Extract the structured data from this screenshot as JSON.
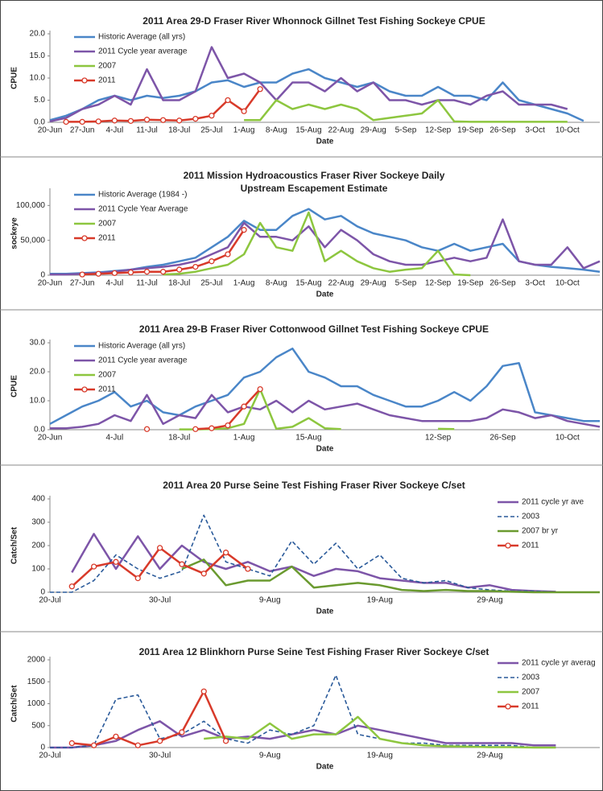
{
  "chart_data": [
    {
      "type": "line",
      "title": "2011 Area 29-D  Fraser River Whonnock Gillnet Test Fishing Sockeye CPUE",
      "xlabel": "Date",
      "ylabel": "CPUE",
      "legend": "upper left",
      "categories": [
        "20-Jun",
        null,
        "27-Jun",
        null,
        "4-Jul",
        null,
        "11-Jul",
        null,
        "18-Jul",
        null,
        "25-Jul",
        null,
        "1-Aug",
        null,
        "8-Aug",
        null,
        "15-Aug",
        null,
        "22-Aug",
        null,
        "29-Aug",
        null,
        "5-Sep",
        null,
        "12-Sep",
        null,
        "19-Sep",
        null,
        "26-Sep",
        null,
        "3-Oct",
        null,
        "10-Oct",
        null,
        null
      ],
      "ylim": [
        0,
        20
      ],
      "yticks": [
        {
          "value": 0,
          "label": "0.0"
        },
        {
          "value": 5,
          "label": "5.0"
        },
        {
          "value": 10,
          "label": "10.0"
        },
        {
          "value": 15,
          "label": "15.0"
        },
        {
          "value": 20,
          "label": "20.0"
        }
      ],
      "series": [
        {
          "name": "Historic Average (all yrs)",
          "color": "#4a86c8",
          "values": [
            0.5,
            1.5,
            3,
            5,
            6,
            5,
            6,
            5.5,
            6,
            7,
            9,
            9.5,
            8,
            9,
            9,
            11,
            12,
            10,
            9,
            8,
            9,
            7,
            6,
            6,
            8,
            6,
            6,
            5,
            9,
            5,
            4,
            3,
            2,
            0.3,
            null
          ]
        },
        {
          "name": "2011 Cycle year average",
          "color": "#7d55a8",
          "values": [
            0.2,
            1,
            3,
            4,
            6,
            4,
            12,
            5,
            5,
            7,
            17,
            10,
            11,
            9,
            5,
            9,
            9,
            7,
            10,
            7,
            9,
            5,
            5,
            4,
            5,
            5,
            4,
            6,
            7,
            4,
            4,
            4,
            3,
            null,
            null
          ]
        },
        {
          "name": "2007",
          "color": "#8dc63f",
          "values": [
            null,
            null,
            null,
            null,
            null,
            null,
            null,
            null,
            null,
            null,
            null,
            null,
            0.5,
            0.5,
            5,
            3,
            4,
            3,
            4,
            3,
            0.5,
            1,
            1.5,
            2,
            5,
            0.2,
            0.1,
            0.1,
            0.1,
            0.1,
            0.1,
            0.1,
            0.1,
            null,
            null
          ]
        },
        {
          "name": "2011",
          "color": "#d83a2a",
          "markers": true,
          "values": [
            null,
            0.1,
            0.1,
            0.2,
            0.4,
            0.3,
            0.6,
            0.5,
            0.4,
            0.8,
            1.5,
            5,
            2.5,
            7.5,
            null,
            null,
            null,
            null,
            null,
            null,
            null,
            null,
            null,
            null,
            null,
            null,
            null,
            null,
            null,
            null,
            null,
            null,
            null,
            null,
            null
          ]
        }
      ]
    },
    {
      "type": "line",
      "title": [
        "2011 Mission Hydroacoustics Fraser River Sockeye Daily",
        "Upstream Escapement Estimate"
      ],
      "xlabel": "Date",
      "ylabel": "sockeye",
      "legend": "upper left",
      "categories": [
        "20-Jun",
        null,
        "27-Jun",
        null,
        "4-Jul",
        null,
        "11-Jul",
        null,
        "18-Jul",
        null,
        "25-Jul",
        null,
        "1-Aug",
        null,
        "8-Aug",
        null,
        "15-Aug",
        null,
        "22-Aug",
        null,
        "29-Aug",
        null,
        "5-Sep",
        null,
        "12-Sep",
        null,
        "19-Sep",
        null,
        "26-Sep",
        null,
        "3-Oct",
        null,
        "10-Oct",
        null,
        null
      ],
      "ylim": [
        0,
        120000
      ],
      "yticks": [
        0,
        {
          "value": 50000,
          "label": "50,000"
        },
        {
          "value": 100000,
          "label": "100,000"
        }
      ],
      "series": [
        {
          "name": "Historic Average (1984 -)",
          "color": "#4a86c8",
          "values": [
            2000,
            2000,
            3000,
            4000,
            6000,
            8000,
            12000,
            15000,
            20000,
            25000,
            40000,
            55000,
            78000,
            65000,
            65000,
            85000,
            95000,
            80000,
            85000,
            70000,
            60000,
            55000,
            50000,
            40000,
            35000,
            45000,
            35000,
            40000,
            45000,
            20000,
            15000,
            12000,
            10000,
            8000,
            5000
          ]
        },
        {
          "name": "2011 Cycle Year Average",
          "color": "#7d55a8",
          "values": [
            1000,
            1000,
            2000,
            3000,
            5000,
            8000,
            10000,
            12000,
            15000,
            20000,
            30000,
            40000,
            75000,
            55000,
            55000,
            50000,
            70000,
            40000,
            65000,
            50000,
            30000,
            20000,
            15000,
            15000,
            20000,
            25000,
            20000,
            25000,
            80000,
            20000,
            15000,
            15000,
            40000,
            10000,
            20000
          ]
        },
        {
          "name": "2007",
          "color": "#8dc63f",
          "values": [
            null,
            null,
            null,
            null,
            null,
            null,
            null,
            1000,
            2000,
            5000,
            10000,
            15000,
            30000,
            75000,
            40000,
            35000,
            90000,
            20000,
            35000,
            20000,
            10000,
            5000,
            8000,
            10000,
            35000,
            1000,
            0,
            null,
            null,
            null,
            null,
            null,
            null,
            null,
            null
          ]
        },
        {
          "name": "2011",
          "color": "#d83a2a",
          "markers": true,
          "values": [
            null,
            null,
            1000,
            2000,
            3000,
            4000,
            5000,
            5000,
            8000,
            12000,
            20000,
            30000,
            65000,
            null,
            null,
            null,
            null,
            null,
            null,
            null,
            null,
            null,
            null,
            null,
            null,
            null,
            null,
            null,
            null,
            null,
            null,
            null,
            null,
            null,
            null
          ]
        }
      ]
    },
    {
      "type": "line",
      "title": "2011 Area 29-B  Fraser River Cottonwood Gillnet Test Fishing Sockeye CPUE",
      "xlabel": "Date",
      "ylabel": "CPUE",
      "legend": "upper left",
      "categories": [
        "20-Jun",
        null,
        null,
        null,
        "4-Jul",
        null,
        null,
        null,
        "18-Jul",
        null,
        null,
        null,
        "1-Aug",
        null,
        null,
        null,
        "15-Aug",
        null,
        null,
        null,
        null,
        null,
        null,
        null,
        "12-Sep",
        null,
        null,
        null,
        "26-Sep",
        null,
        null,
        null,
        "10-Oct",
        null,
        null
      ],
      "ylim": [
        0,
        30
      ],
      "yticks": [
        {
          "value": 0,
          "label": "0.0"
        },
        {
          "value": 10,
          "label": "10.0"
        },
        {
          "value": 20,
          "label": "20.0"
        },
        {
          "value": 30,
          "label": "30.0"
        }
      ],
      "series": [
        {
          "name": "Historic Average (all yrs)",
          "color": "#4a86c8",
          "values": [
            2,
            5,
            8,
            10,
            13,
            8,
            10,
            6,
            5,
            8,
            10,
            12,
            18,
            20,
            25,
            28,
            20,
            18,
            15,
            15,
            12,
            10,
            8,
            8,
            10,
            13,
            10,
            15,
            22,
            23,
            6,
            5,
            4,
            3,
            3
          ]
        },
        {
          "name": "2011 Cycle year average",
          "color": "#7d55a8",
          "values": [
            0.5,
            0.5,
            1,
            2,
            5,
            3,
            12,
            2,
            5,
            4,
            12,
            6,
            8,
            7,
            10,
            6,
            10,
            7,
            8,
            9,
            7,
            5,
            4,
            3,
            3,
            3,
            3,
            4,
            7,
            6,
            4,
            5,
            3,
            2,
            1
          ]
        },
        {
          "name": "2007",
          "color": "#8dc63f",
          "values": [
            null,
            null,
            null,
            null,
            null,
            null,
            null,
            null,
            0.1,
            0.1,
            0.2,
            0.5,
            2,
            14,
            0.3,
            1,
            4,
            0.5,
            0.2,
            null,
            null,
            null,
            null,
            null,
            0.3,
            0.2,
            null,
            null,
            null,
            null,
            null,
            null,
            null,
            null,
            null
          ]
        },
        {
          "name": "2011",
          "color": "#d83a2a",
          "markers": true,
          "values": [
            null,
            null,
            null,
            null,
            null,
            null,
            0.2,
            null,
            null,
            0.2,
            0.5,
            1.5,
            8,
            14,
            null,
            null,
            null,
            null,
            null,
            null,
            null,
            null,
            null,
            null,
            null,
            null,
            null,
            null,
            null,
            null,
            null,
            null,
            null,
            null,
            null
          ]
        }
      ]
    },
    {
      "type": "line",
      "title": "2011 Area 20 Purse Seine Test Fishing Fraser River Sockeye C/set",
      "xlabel": "Date",
      "ylabel": "Catch/Set",
      "legend": "upper right",
      "categories": [
        "20-Jul",
        null,
        null,
        null,
        null,
        "30-Jul",
        null,
        null,
        null,
        null,
        "9-Aug",
        null,
        null,
        null,
        null,
        "19-Aug",
        null,
        null,
        null,
        null,
        "29-Aug",
        null,
        null,
        null,
        null,
        null
      ],
      "ylim": [
        0,
        400
      ],
      "yticks": [
        0,
        100,
        200,
        300,
        400
      ],
      "series": [
        {
          "name": "2011 cycle yr ave",
          "color": "#7d55a8",
          "values": [
            null,
            85,
            250,
            100,
            240,
            100,
            200,
            130,
            100,
            130,
            90,
            110,
            70,
            100,
            90,
            60,
            50,
            40,
            40,
            20,
            30,
            10,
            5,
            2,
            null,
            null
          ]
        },
        {
          "name": "2003",
          "color": "#2a5a9a",
          "dash": true,
          "values": [
            0,
            0,
            50,
            160,
            100,
            60,
            90,
            330,
            130,
            100,
            70,
            220,
            120,
            210,
            100,
            160,
            60,
            40,
            50,
            20,
            10,
            5,
            5,
            0,
            0,
            null
          ]
        },
        {
          "name": "2007 br yr",
          "color": "#6a9a2f",
          "values": [
            null,
            null,
            null,
            null,
            null,
            null,
            100,
            140,
            30,
            50,
            50,
            110,
            20,
            30,
            40,
            30,
            10,
            5,
            10,
            5,
            5,
            2,
            0,
            0,
            0,
            0
          ]
        },
        {
          "name": "2011",
          "color": "#d83a2a",
          "markers": true,
          "values": [
            null,
            25,
            110,
            130,
            60,
            190,
            120,
            80,
            170,
            100,
            null,
            null,
            null,
            null,
            null,
            null,
            null,
            null,
            null,
            null,
            null,
            null,
            null,
            null,
            null,
            null
          ]
        }
      ]
    },
    {
      "type": "line",
      "title": "2011 Area 12 Blinkhorn Purse Seine Test Fishing Fraser River Sockeye C/set",
      "xlabel": "Date",
      "ylabel": "Catch/Set",
      "legend": "upper right",
      "categories": [
        "20-Jul",
        null,
        null,
        null,
        null,
        "30-Jul",
        null,
        null,
        null,
        null,
        "9-Aug",
        null,
        null,
        null,
        null,
        "19-Aug",
        null,
        null,
        null,
        null,
        "29-Aug",
        null,
        null,
        null,
        null,
        null
      ],
      "ylim": [
        0,
        2000
      ],
      "yticks": [
        0,
        500,
        1000,
        1500,
        2000
      ],
      "series": [
        {
          "name": "2011 cycle yr averag",
          "color": "#7d55a8",
          "values": [
            0,
            0,
            50,
            150,
            400,
            600,
            250,
            400,
            200,
            250,
            200,
            300,
            400,
            300,
            500,
            400,
            300,
            200,
            100,
            100,
            100,
            100,
            50,
            50,
            null,
            null
          ]
        },
        {
          "name": "2003",
          "color": "#2a5a9a",
          "dash": true,
          "values": [
            0,
            0,
            50,
            1100,
            1200,
            200,
            300,
            600,
            200,
            100,
            400,
            300,
            500,
            1650,
            300,
            200,
            100,
            100,
            50,
            50,
            50,
            50,
            0,
            0,
            null,
            null
          ]
        },
        {
          "name": "2007",
          "color": "#8dc63f",
          "values": [
            null,
            null,
            null,
            null,
            null,
            null,
            null,
            200,
            250,
            200,
            550,
            200,
            300,
            300,
            700,
            200,
            100,
            50,
            30,
            20,
            10,
            10,
            0,
            0,
            null,
            null
          ]
        },
        {
          "name": "2011",
          "color": "#d83a2a",
          "markers": true,
          "values": [
            null,
            100,
            50,
            250,
            50,
            150,
            350,
            1280,
            150,
            null,
            null,
            null,
            null,
            null,
            null,
            null,
            null,
            null,
            null,
            null,
            null,
            null,
            null,
            null,
            null,
            null
          ]
        }
      ]
    }
  ]
}
